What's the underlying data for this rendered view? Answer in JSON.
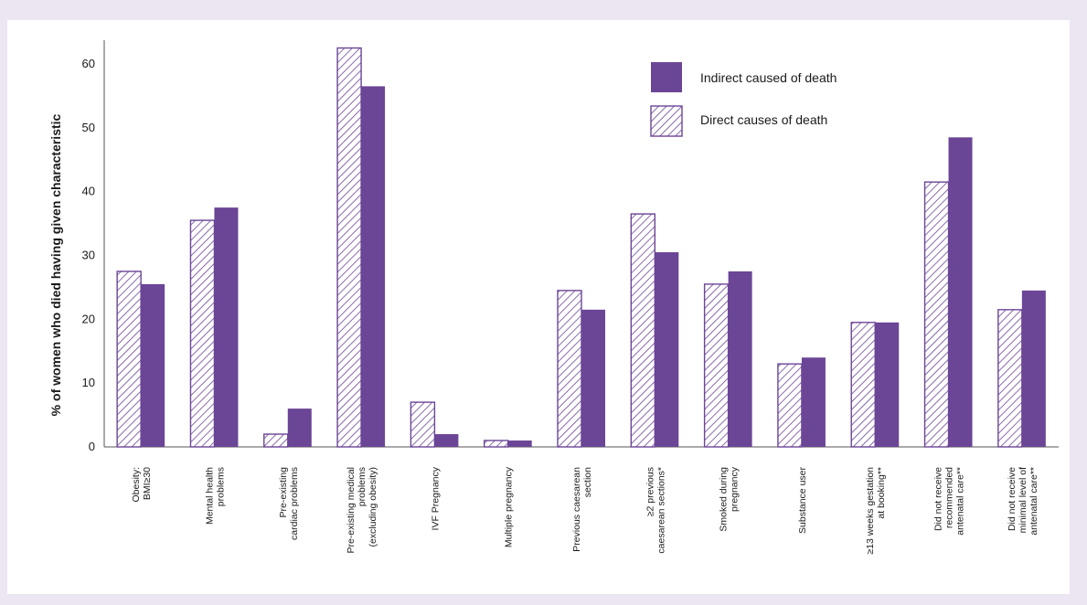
{
  "chart_data": {
    "type": "bar",
    "ylabel": "% of women who died having given characteristic",
    "ylim": [
      0,
      62
    ],
    "yticks": [
      0,
      10,
      20,
      30,
      40,
      50,
      60
    ],
    "grid": false,
    "legend_position": "top-right",
    "colors": {
      "solid": "#6b4596",
      "hatch_stroke": "#6b4596",
      "axis": "#555555"
    },
    "categories": [
      [
        "Obesity:",
        "BMI≥30"
      ],
      [
        "Mental health",
        "problems"
      ],
      [
        "Pre-existing",
        "cardiac problems"
      ],
      [
        "Pre-existing medical",
        "problems",
        "(excluding obesity)"
      ],
      [
        "IVF Pregnancy"
      ],
      [
        "Multiple pregnancy"
      ],
      [
        "Previous caesarean",
        "section"
      ],
      [
        "≥2 previous",
        "caesarean sections*"
      ],
      [
        "Smoked during",
        "pregnancy"
      ],
      [
        "Substance user"
      ],
      [
        "≥13 weeks gestation",
        "at booking**"
      ],
      [
        "Did not receive",
        "recommended",
        "antenatal care**"
      ],
      [
        "Did not receive",
        "minimal level of",
        "antenatal care**"
      ]
    ],
    "series": [
      {
        "name": "Direct causes of death",
        "pattern": "hatched",
        "values": [
          27.5,
          35.5,
          2,
          62.5,
          7,
          1,
          24.5,
          36.5,
          25.5,
          13,
          19.5,
          41.5,
          21.5
        ]
      },
      {
        "name": "Indirect caused of death",
        "pattern": "solid",
        "values": [
          25.5,
          37.5,
          6,
          56.5,
          2,
          1,
          21.5,
          30.5,
          27.5,
          14,
          19.5,
          48.5,
          24.5
        ]
      }
    ]
  }
}
